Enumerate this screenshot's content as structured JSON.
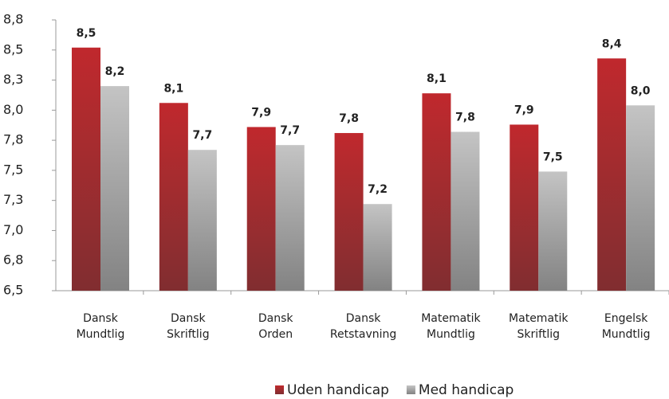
{
  "chart_data": {
    "type": "bar",
    "categories": [
      [
        "Dansk",
        "Mundtlig"
      ],
      [
        "Dansk",
        "Skriftlig"
      ],
      [
        "Dansk",
        "Orden"
      ],
      [
        "Dansk",
        "Retstavning"
      ],
      [
        "Matematik",
        "Mundtlig"
      ],
      [
        "Matematik",
        "Skriftlig"
      ],
      [
        "Engelsk",
        "Mundtlig"
      ]
    ],
    "series": [
      {
        "name": "Uden handicap",
        "color": "#c0282d",
        "values": [
          8.52,
          8.06,
          7.86,
          7.81,
          8.14,
          7.88,
          8.43
        ],
        "value_labels": [
          "8,5",
          "8,1",
          "7,9",
          "7,8",
          "8,1",
          "7,9",
          "8,4"
        ]
      },
      {
        "name": "Med handicap",
        "color": "#c4c4c4",
        "values": [
          8.2,
          7.67,
          7.71,
          7.22,
          7.82,
          7.49,
          8.04
        ],
        "value_labels": [
          "8,2",
          "7,7",
          "7,7",
          "7,2",
          "7,8",
          "7,5",
          "8,0"
        ]
      }
    ],
    "ylim": [
      6.5,
      8.75
    ],
    "yticks": [
      {
        "value": 6.5,
        "label": "6,5"
      },
      {
        "value": 6.75,
        "label": "6,8"
      },
      {
        "value": 7.0,
        "label": "7,0"
      },
      {
        "value": 7.25,
        "label": "7,3"
      },
      {
        "value": 7.5,
        "label": "7,5"
      },
      {
        "value": 7.75,
        "label": "7,8"
      },
      {
        "value": 8.0,
        "label": "8,0"
      },
      {
        "value": 8.25,
        "label": "8,3"
      },
      {
        "value": 8.5,
        "label": "8,5"
      },
      {
        "value": 8.75,
        "label": "8,8"
      }
    ],
    "grid": false,
    "legend": "bottom"
  }
}
